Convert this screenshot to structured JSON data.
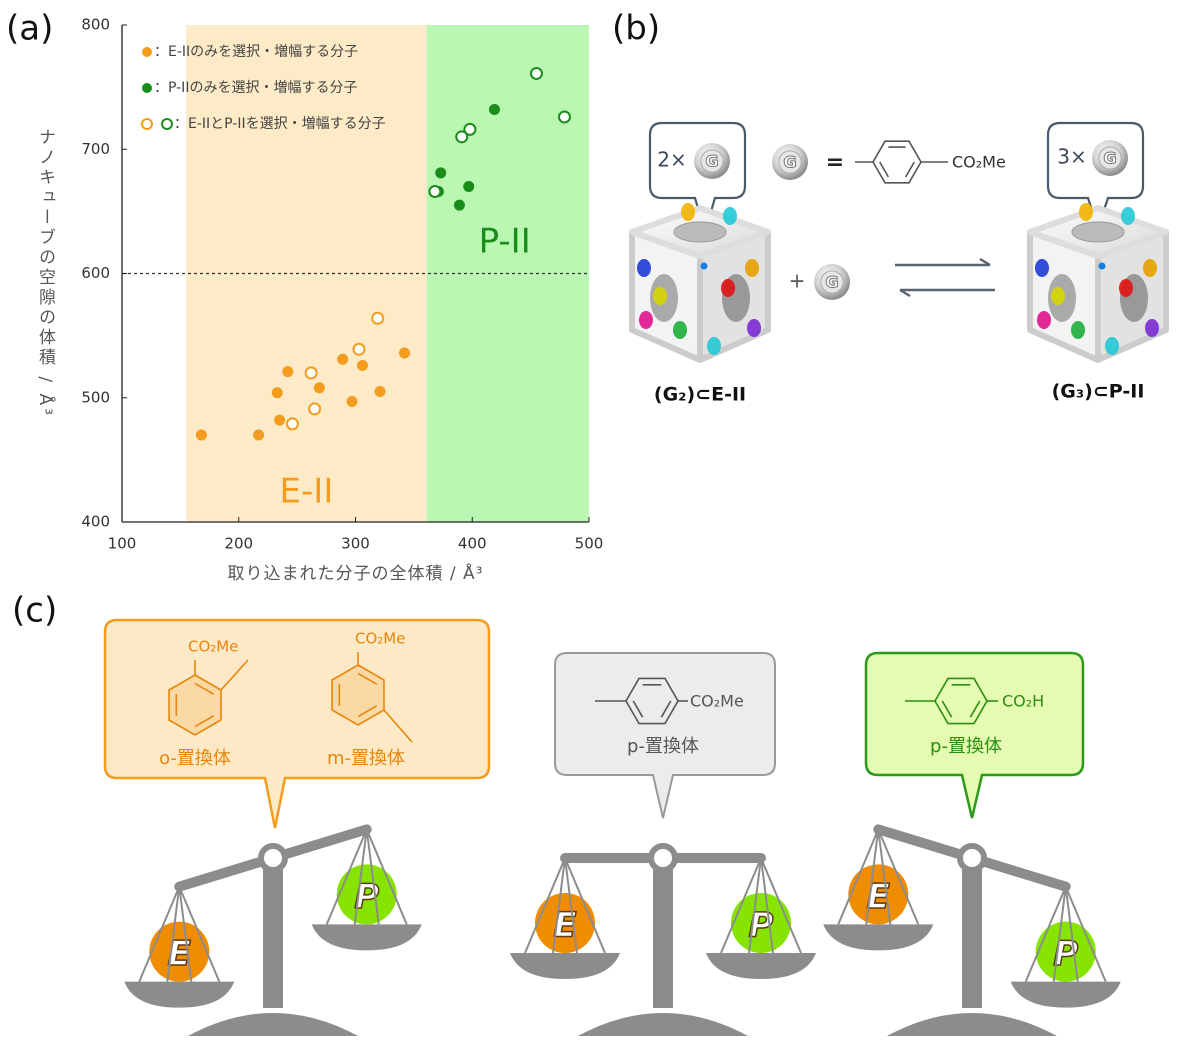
{
  "chart_data": {
    "type": "scatter",
    "xlabel": "取り込まれた分子の全体積 / Å³",
    "ylabel": "ナノキューブの空隙の体積 / Å³",
    "xlim": [
      100,
      500
    ],
    "ylim": [
      400,
      800
    ],
    "xticks": [
      100,
      200,
      300,
      400,
      500
    ],
    "yticks": [
      400,
      500,
      600,
      700,
      800
    ],
    "hline": 600,
    "regions": [
      {
        "label": "E-II",
        "xlim": [
          155,
          361
        ],
        "color": "#fdebc8",
        "label_color": "#f39c1e"
      },
      {
        "label": "P-II",
        "xlim": [
          361,
          500
        ],
        "color": "#b9f7b3",
        "label_color": "#1a8c1a"
      }
    ],
    "series": [
      {
        "name": "：E-IIのみを選択・増幅する分子",
        "color": "#f39c1e",
        "filled": true,
        "x": [
          168,
          217,
          233,
          242,
          235,
          269,
          289,
          297,
          306,
          321,
          342
        ],
        "values": [
          470,
          470,
          504,
          521,
          482,
          508,
          531,
          497,
          526,
          505,
          536
        ]
      },
      {
        "name": "：P-IIのみを選択・増幅する分子",
        "color": "#1a8c1a",
        "filled": true,
        "x": [
          373,
          371,
          389,
          397,
          419
        ],
        "values": [
          681,
          666,
          655,
          670,
          732
        ]
      },
      {
        "name": "：E-IIとP-IIを選択・増幅する分子",
        "filled": false,
        "colors": [
          "#f39c1e",
          "#f39c1e",
          "#f39c1e",
          "#f39c1e",
          "#f39c1e",
          "#1a8c1a",
          "#1a8c1a",
          "#1a8c1a",
          "#1a8c1a",
          "#1a8c1a"
        ],
        "x": [
          246,
          265,
          262,
          303,
          319,
          368,
          391,
          398,
          455,
          479
        ],
        "values": [
          479,
          491,
          520,
          539,
          564,
          666,
          710,
          716,
          761,
          726
        ]
      }
    ]
  },
  "panel_labels": [
    "(a)",
    "(b)",
    "(c)"
  ],
  "scheme_b": {
    "left_count": "2×",
    "right_count": "3×",
    "guest": "G",
    "equals": "=",
    "substituent": "CO₂Me",
    "plus": "+",
    "left_label": "(G₂)⊂E-II",
    "right_label": "(G₃)⊂P-II"
  },
  "scheme_c": {
    "boxes": [
      {
        "items": [
          {
            "group": "CO₂Me",
            "label": "o-置換体"
          },
          {
            "group": "CO₂Me",
            "label": "m-置換体"
          }
        ]
      },
      {
        "items": [
          {
            "group": "CO₂Me",
            "label": "p-置換体"
          }
        ]
      },
      {
        "items": [
          {
            "group": "CO₂H",
            "label": "p-置換体"
          }
        ]
      }
    ],
    "balances": [
      {
        "left": "E",
        "right": "P"
      },
      {
        "left": "E",
        "right": "P"
      },
      {
        "left": "E",
        "right": "P"
      }
    ]
  }
}
